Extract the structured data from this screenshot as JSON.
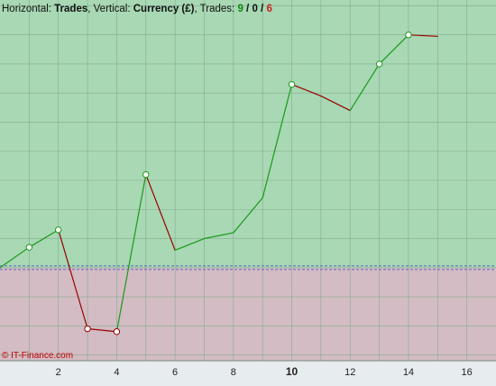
{
  "header": {
    "horizontal_label": "Horizontal: ",
    "horizontal_value": "Trades",
    "vertical_label": ", Vertical: ",
    "vertical_value": "Currency (£)",
    "trades_label": ", Trades: ",
    "trades_win": "9",
    "sep1": " / ",
    "trades_even": "0",
    "sep2": " / ",
    "trades_loss": "6"
  },
  "copyright": "© IT-Finance.com",
  "colors": {
    "profit_zone": "#a8d8b4",
    "loss_zone": "#d3bcc3",
    "gain_line": "#1a9a1a",
    "loss_line": "#990000",
    "win_text": "#118811",
    "loss_text": "#cc2222",
    "baseline": "#3b3bc8",
    "grid": "#86ab91",
    "axis_bg": "#e7ecef"
  },
  "chart_data": {
    "type": "line",
    "xlabel": "Trades",
    "ylabel": "Currency (£)",
    "xlim": [
      0,
      17
    ],
    "ylim": [
      -3.2,
      9.2
    ],
    "grid": true,
    "x_ticks": [
      {
        "value": 2,
        "label": "2"
      },
      {
        "value": 4,
        "label": "4"
      },
      {
        "value": 6,
        "label": "6"
      },
      {
        "value": 8,
        "label": "8"
      },
      {
        "value": 10,
        "label": "10",
        "bold": true
      },
      {
        "value": 12,
        "label": "12"
      },
      {
        "value": 14,
        "label": "14"
      },
      {
        "value": 16,
        "label": "16"
      }
    ],
    "x": [
      0,
      1,
      2,
      3,
      4,
      5,
      6,
      7,
      8,
      9,
      10,
      11,
      12,
      13,
      14,
      15
    ],
    "y": [
      0.0,
      0.7,
      1.3,
      -2.1,
      -2.2,
      3.2,
      0.6,
      1.0,
      1.2,
      2.4,
      6.3,
      5.9,
      5.4,
      7.0,
      8.0,
      7.95
    ],
    "markers": [
      1,
      2,
      3,
      4,
      5,
      10,
      13,
      14
    ],
    "baseline": 0
  }
}
